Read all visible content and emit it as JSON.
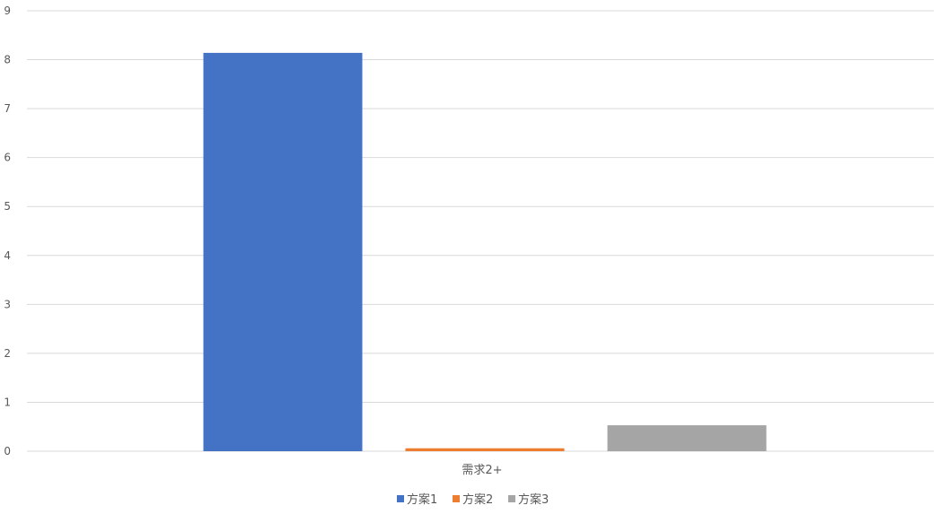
{
  "chart_data": {
    "type": "bar",
    "categories": [
      "需求2+"
    ],
    "series": [
      {
        "name": "方案1",
        "values": [
          8.14
        ],
        "color": "#4472C4"
      },
      {
        "name": "方案2",
        "values": [
          0.06
        ],
        "color": "#ED7D31"
      },
      {
        "name": "方案3",
        "values": [
          0.53
        ],
        "color": "#A5A5A5"
      }
    ],
    "ylim": [
      0,
      9
    ],
    "yticks": [
      "0",
      "1",
      "2",
      "3",
      "4",
      "5",
      "6",
      "7",
      "8",
      "9"
    ],
    "grid": true,
    "legend": "bottom"
  }
}
